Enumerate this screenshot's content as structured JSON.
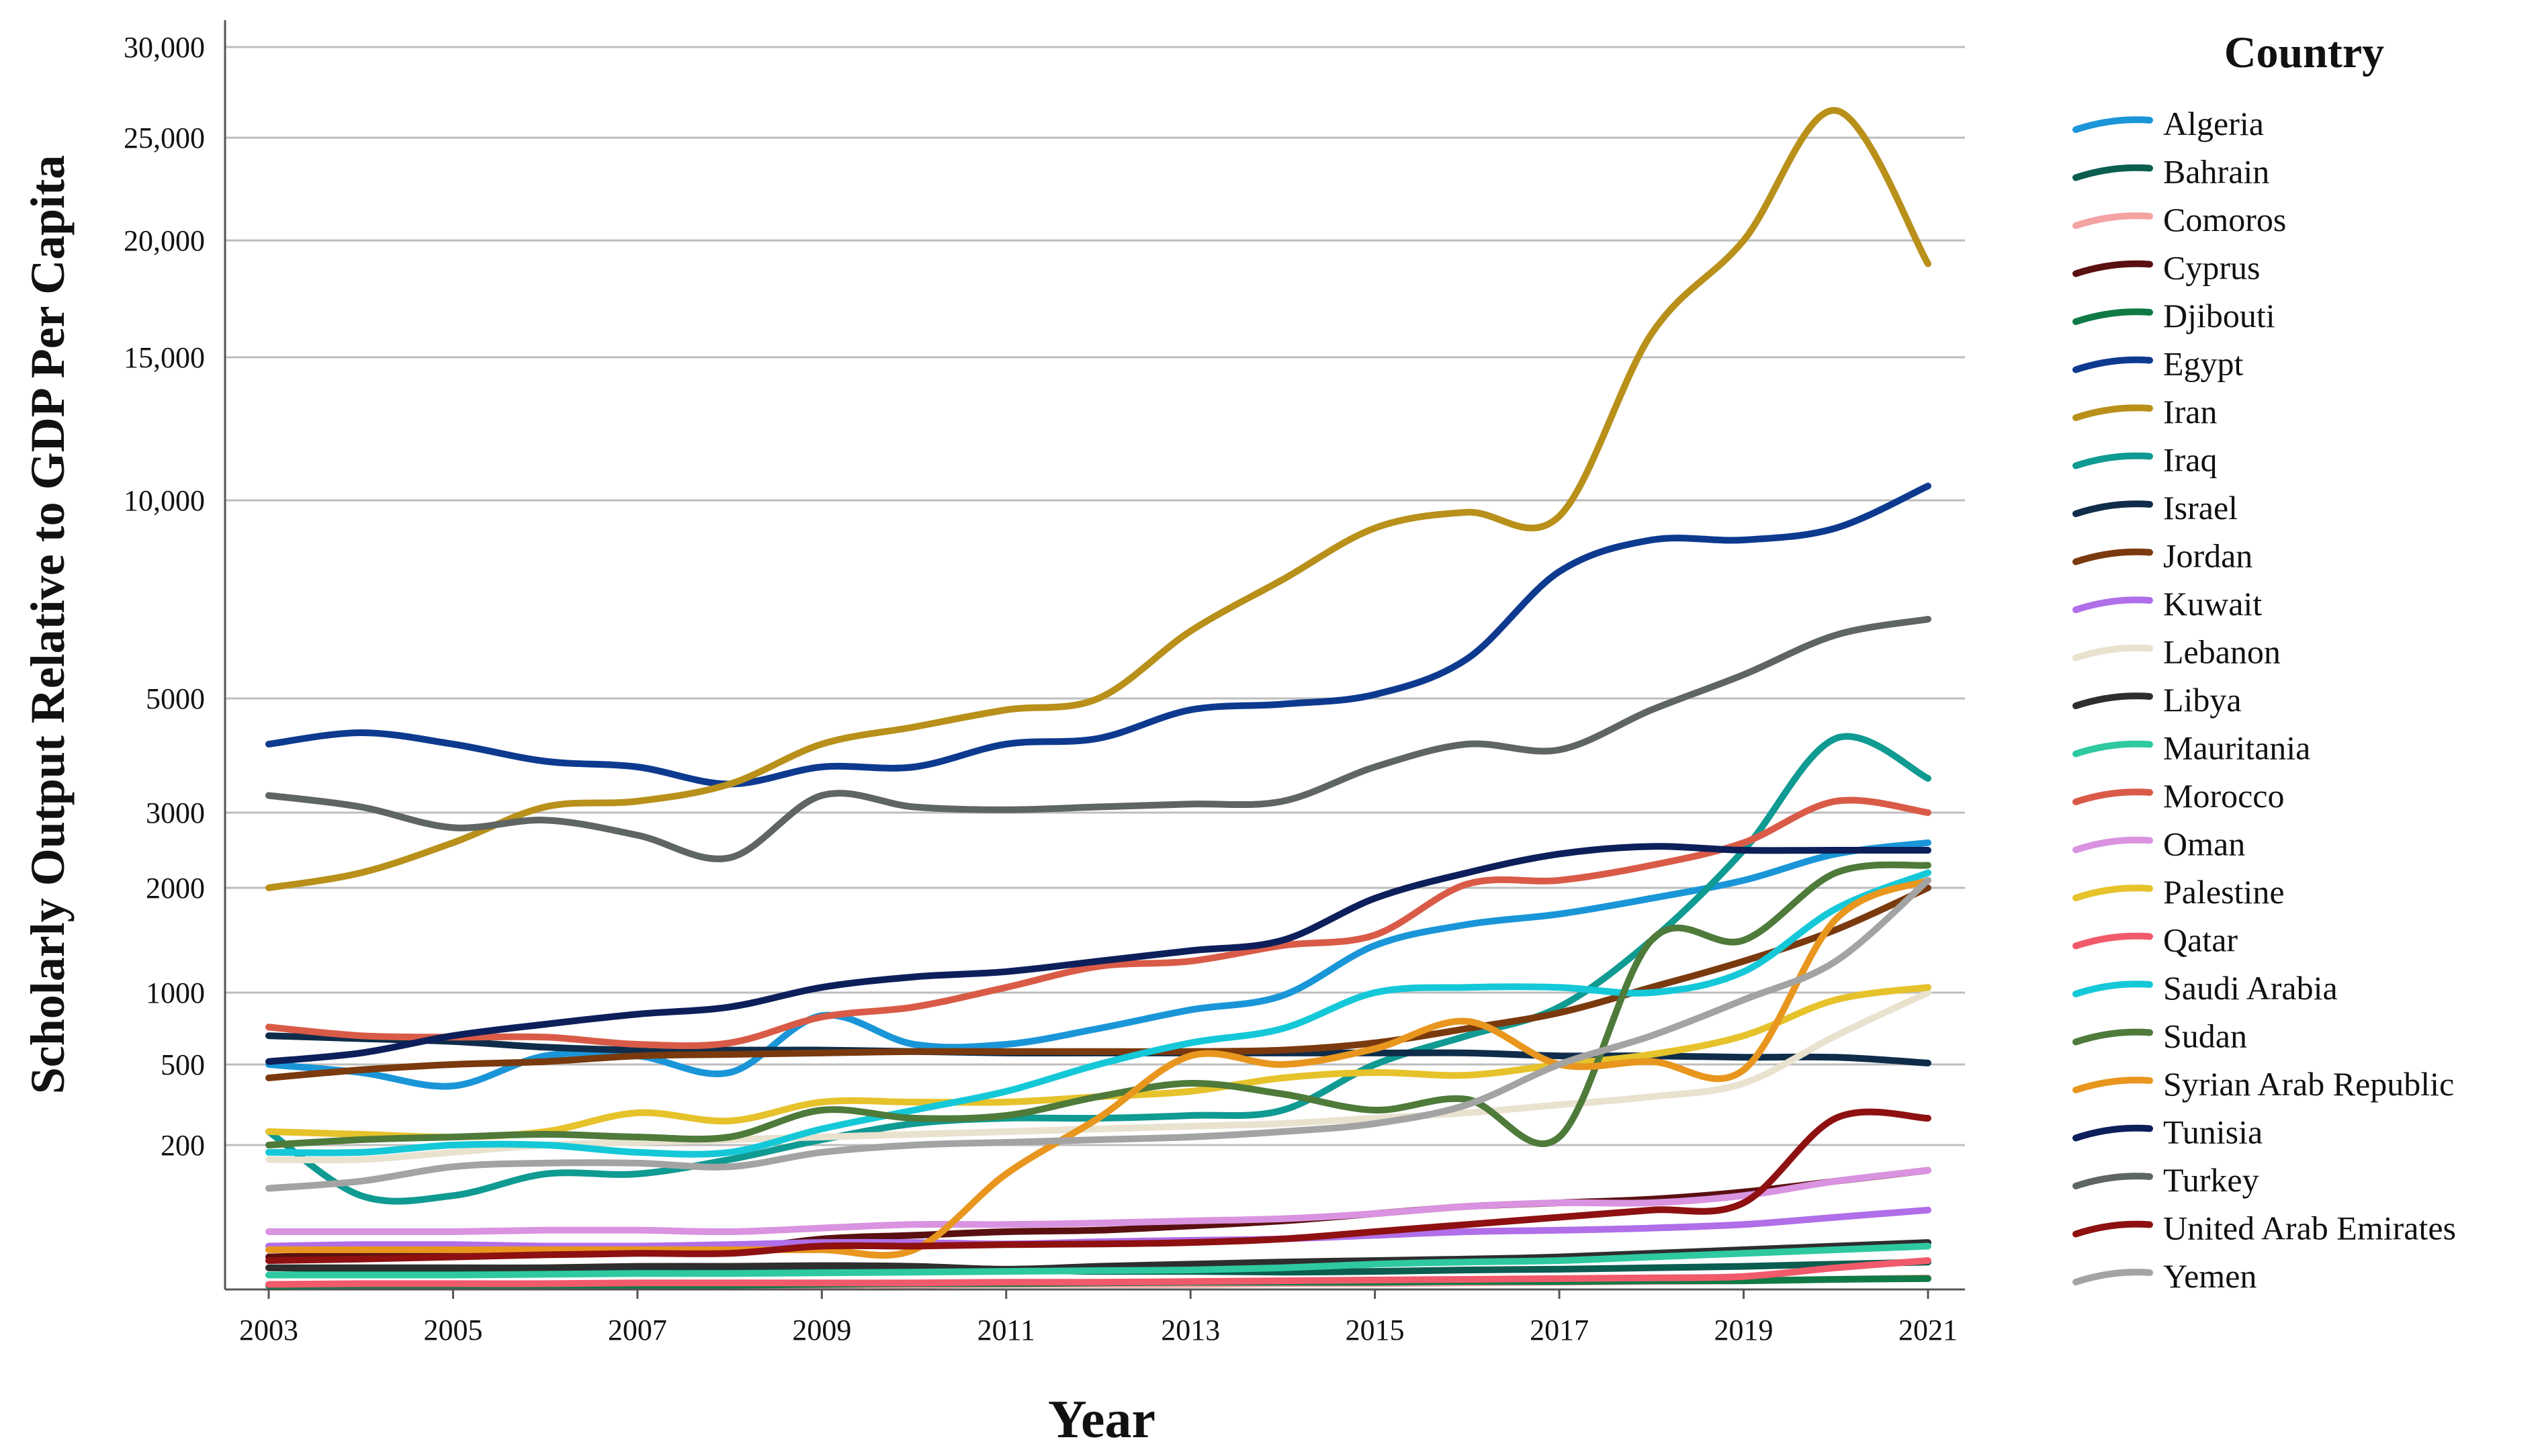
{
  "chart_data": {
    "type": "line",
    "title": "",
    "xlabel": "Year",
    "ylabel": "Scholarly Output Relative to GDP Per Capita",
    "legend_title": "Country",
    "legend_position": "right",
    "grid": true,
    "x": [
      2003,
      2004,
      2005,
      2006,
      2007,
      2008,
      2009,
      2010,
      2011,
      2012,
      2013,
      2014,
      2015,
      2016,
      2017,
      2018,
      2019,
      2020,
      2021
    ],
    "x_tick_labels": [
      "2003",
      "2005",
      "2007",
      "2009",
      "2011",
      "2013",
      "2015",
      "2017",
      "2019",
      "2021"
    ],
    "y_tick_labels": [
      "200",
      "500",
      "1000",
      "2000",
      "3000",
      "5000",
      "10,000",
      "15,000",
      "20,000",
      "25,000",
      "30,000"
    ],
    "series": [
      {
        "name": "Algeria",
        "color": "#1a96d8",
        "values": [
          500,
          470,
          420,
          560,
          560,
          470,
          840,
          640,
          640,
          750,
          880,
          980,
          1450,
          1650,
          1750,
          1900,
          2100,
          2450,
          2600
        ]
      },
      {
        "name": "Bahrain",
        "color": "#0b5d50",
        "values": [
          30,
          28,
          28,
          27,
          27,
          26,
          26,
          25,
          27,
          25,
          25,
          24,
          25,
          27,
          28,
          30,
          32,
          35,
          38
        ]
      },
      {
        "name": "Comoros",
        "color": "#f4a3a3",
        "values": [
          6,
          6,
          6,
          7,
          7,
          6,
          6,
          6,
          7,
          7,
          7,
          8,
          8,
          9,
          10,
          11,
          12,
          14,
          16
        ]
      },
      {
        "name": "Cyprus",
        "color": "#5a1010",
        "values": [
          45,
          48,
          50,
          52,
          55,
          55,
          70,
          75,
          80,
          82,
          88,
          95,
          105,
          115,
          120,
          125,
          135,
          150,
          165
        ]
      },
      {
        "name": "Djibouti",
        "color": "#0f7a46",
        "values": [
          5,
          6,
          6,
          6,
          6,
          6,
          7,
          8,
          8,
          9,
          10,
          10,
          10,
          11,
          11,
          12,
          12,
          14,
          15
        ]
      },
      {
        "name": "Egypt",
        "color": "#0d3a8f",
        "values": [
          4200,
          4400,
          4200,
          3900,
          3800,
          3500,
          3800,
          3800,
          4200,
          4300,
          4800,
          4900,
          5100,
          6000,
          8200,
          9000,
          9000,
          9300,
          10500
        ]
      },
      {
        "name": "Iran",
        "color": "#b8901a",
        "values": [
          2000,
          2200,
          2600,
          3100,
          3200,
          3500,
          4200,
          4500,
          4800,
          5000,
          6700,
          8000,
          9300,
          9700,
          9600,
          16000,
          20000,
          26500,
          19000
        ]
      },
      {
        "name": "Iraq",
        "color": "#0f9a92",
        "values": [
          250,
          130,
          130,
          160,
          160,
          180,
          220,
          280,
          300,
          300,
          310,
          330,
          500,
          700,
          900,
          1500,
          2500,
          4300,
          3600
        ]
      },
      {
        "name": "Israel",
        "color": "#0f2d4a",
        "values": [
          700,
          680,
          660,
          620,
          600,
          600,
          600,
          590,
          580,
          580,
          580,
          580,
          580,
          580,
          560,
          560,
          550,
          550,
          510
        ]
      },
      {
        "name": "Jordan",
        "color": "#7a3a0e",
        "values": [
          450,
          480,
          500,
          520,
          560,
          570,
          580,
          590,
          590,
          590,
          590,
          600,
          650,
          750,
          860,
          1050,
          1300,
          1600,
          2000
        ]
      },
      {
        "name": "Kuwait",
        "color": "#b06ee8",
        "values": [
          60,
          62,
          62,
          60,
          60,
          62,
          65,
          65,
          63,
          66,
          68,
          70,
          75,
          80,
          82,
          85,
          90,
          100,
          110
        ]
      },
      {
        "name": "Lebanon",
        "color": "#e8e2cf",
        "values": [
          180,
          180,
          190,
          200,
          210,
          220,
          230,
          240,
          250,
          260,
          270,
          280,
          300,
          320,
          350,
          380,
          430,
          700,
          1000
        ]
      },
      {
        "name": "Libya",
        "color": "#2e2e2e",
        "values": [
          30,
          30,
          30,
          30,
          32,
          32,
          33,
          32,
          28,
          32,
          35,
          38,
          40,
          42,
          45,
          50,
          55,
          60,
          65
        ]
      },
      {
        "name": "Mauritania",
        "color": "#2ec9a0",
        "values": [
          20,
          20,
          20,
          21,
          22,
          22,
          23,
          24,
          25,
          26,
          27,
          30,
          35,
          38,
          40,
          45,
          50,
          55,
          60
        ]
      },
      {
        "name": "Morocco",
        "color": "#d95b47",
        "values": [
          760,
          700,
          690,
          690,
          640,
          650,
          830,
          900,
          1050,
          1250,
          1300,
          1450,
          1550,
          2050,
          2100,
          2300,
          2600,
          3200,
          3000
        ]
      },
      {
        "name": "Oman",
        "color": "#d993e0",
        "values": [
          80,
          80,
          80,
          82,
          82,
          80,
          85,
          90,
          90,
          92,
          95,
          98,
          105,
          115,
          120,
          120,
          130,
          150,
          165
        ]
      },
      {
        "name": "Palestine",
        "color": "#e6c22b",
        "values": [
          250,
          240,
          230,
          250,
          320,
          290,
          360,
          360,
          360,
          380,
          400,
          450,
          470,
          460,
          500,
          570,
          700,
          950,
          1050
        ]
      },
      {
        "name": "Qatar",
        "color": "#f05a6a",
        "values": [
          7,
          8,
          8,
          8,
          9,
          9,
          9,
          9,
          10,
          10,
          11,
          12,
          13,
          14,
          15,
          16,
          18,
          30,
          40
        ]
      },
      {
        "name": "Saudi Arabia",
        "color": "#14c8d8",
        "values": [
          190,
          190,
          200,
          200,
          190,
          190,
          260,
          330,
          400,
          500,
          650,
          750,
          1000,
          1050,
          1050,
          1000,
          1200,
          1800,
          2200
        ]
      },
      {
        "name": "Sudan",
        "color": "#4e7a3a",
        "values": [
          200,
          220,
          230,
          240,
          230,
          230,
          330,
          300,
          310,
          380,
          430,
          390,
          330,
          370,
          230,
          1500,
          1500,
          2200,
          2300
        ]
      },
      {
        "name": "Syrian Arab Republic",
        "color": "#e8961e",
        "values": [
          55,
          55,
          55,
          55,
          55,
          55,
          55,
          55,
          160,
          300,
          560,
          500,
          610,
          800,
          500,
          520,
          480,
          1700,
          2100
        ]
      },
      {
        "name": "Tunisia",
        "color": "#0d1f5a",
        "values": [
          520,
          580,
          700,
          780,
          850,
          900,
          1050,
          1150,
          1200,
          1300,
          1400,
          1500,
          1900,
          2200,
          2450,
          2550,
          2500,
          2500,
          2500
        ]
      },
      {
        "name": "Turkey",
        "color": "#5f6563",
        "values": [
          3300,
          3100,
          2800,
          2900,
          2700,
          2400,
          3300,
          3100,
          3050,
          3100,
          3150,
          3200,
          3800,
          4200,
          4100,
          4800,
          5600,
          6600,
          7000
        ]
      },
      {
        "name": "United Arab Emirates",
        "color": "#8e1010",
        "values": [
          40,
          42,
          45,
          48,
          50,
          50,
          60,
          60,
          62,
          63,
          65,
          70,
          80,
          90,
          100,
          110,
          120,
          300,
          300
        ]
      },
      {
        "name": "Yemen",
        "color": "#a3a3a3",
        "values": [
          140,
          150,
          170,
          175,
          175,
          170,
          190,
          200,
          210,
          220,
          230,
          250,
          280,
          350,
          500,
          700,
          950,
          1300,
          2100
        ]
      }
    ]
  }
}
